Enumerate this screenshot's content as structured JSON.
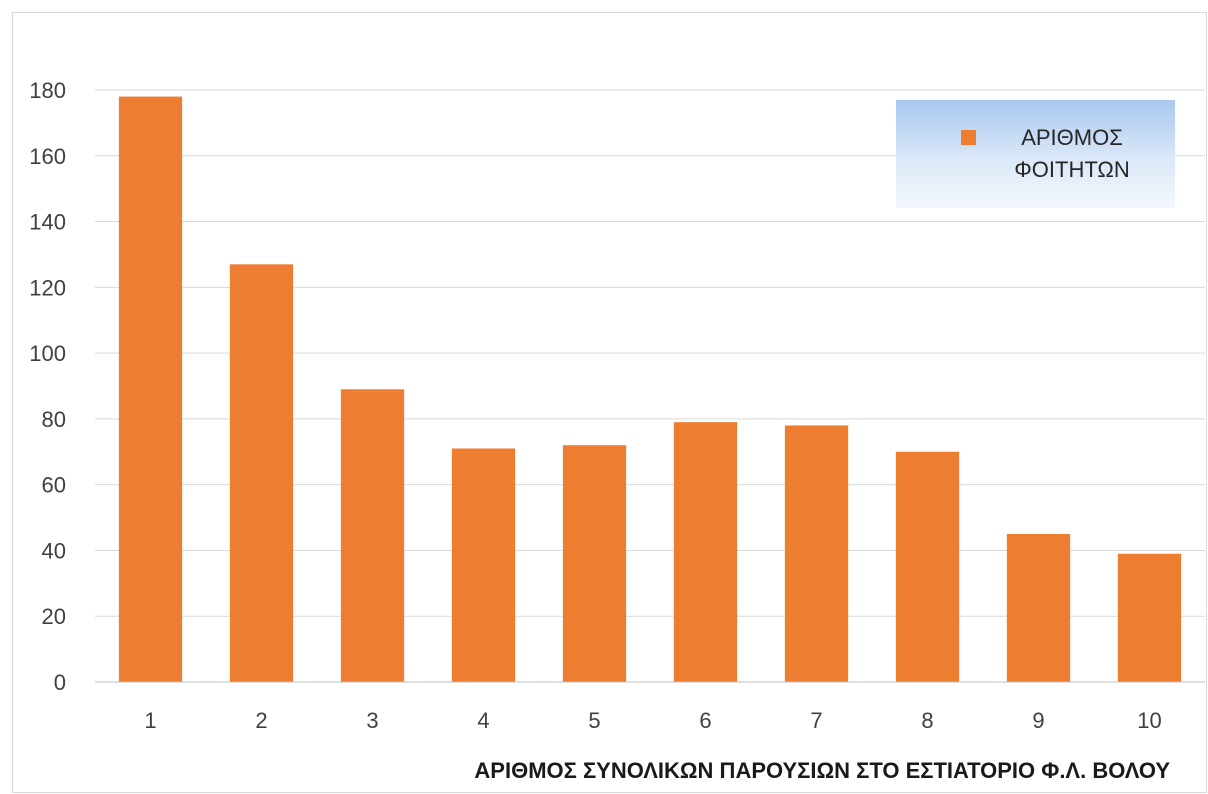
{
  "chart_data": {
    "type": "bar",
    "categories": [
      "1",
      "2",
      "3",
      "4",
      "5",
      "6",
      "7",
      "8",
      "9",
      "10"
    ],
    "series": [
      {
        "name": "ΑΡΙΘΜΟΣ ΦΟΙΤΗΤΩΝ",
        "name_lines": [
          "ΑΡΙΘΜΟΣ",
          "ΦΟΙΤΗΤΩΝ"
        ],
        "values": [
          178,
          127,
          89,
          71,
          72,
          79,
          78,
          70,
          45,
          39
        ],
        "color": "#ed7d31"
      }
    ],
    "xlabel": "ΑΡΙΘΜΟΣ ΣΥΝΟΛΙΚΩΝ ΠΑΡΟΥΣΙΩΝ ΣΤΟ ΕΣΤΙΑΤΟΡΙΟ Φ.Λ. ΒΟΛΟΥ",
    "ylabel": "",
    "ylim": [
      0,
      180
    ],
    "yticks": [
      0,
      20,
      40,
      60,
      80,
      100,
      120,
      140,
      160,
      180
    ],
    "grid": true,
    "legend_position": "top-right"
  }
}
